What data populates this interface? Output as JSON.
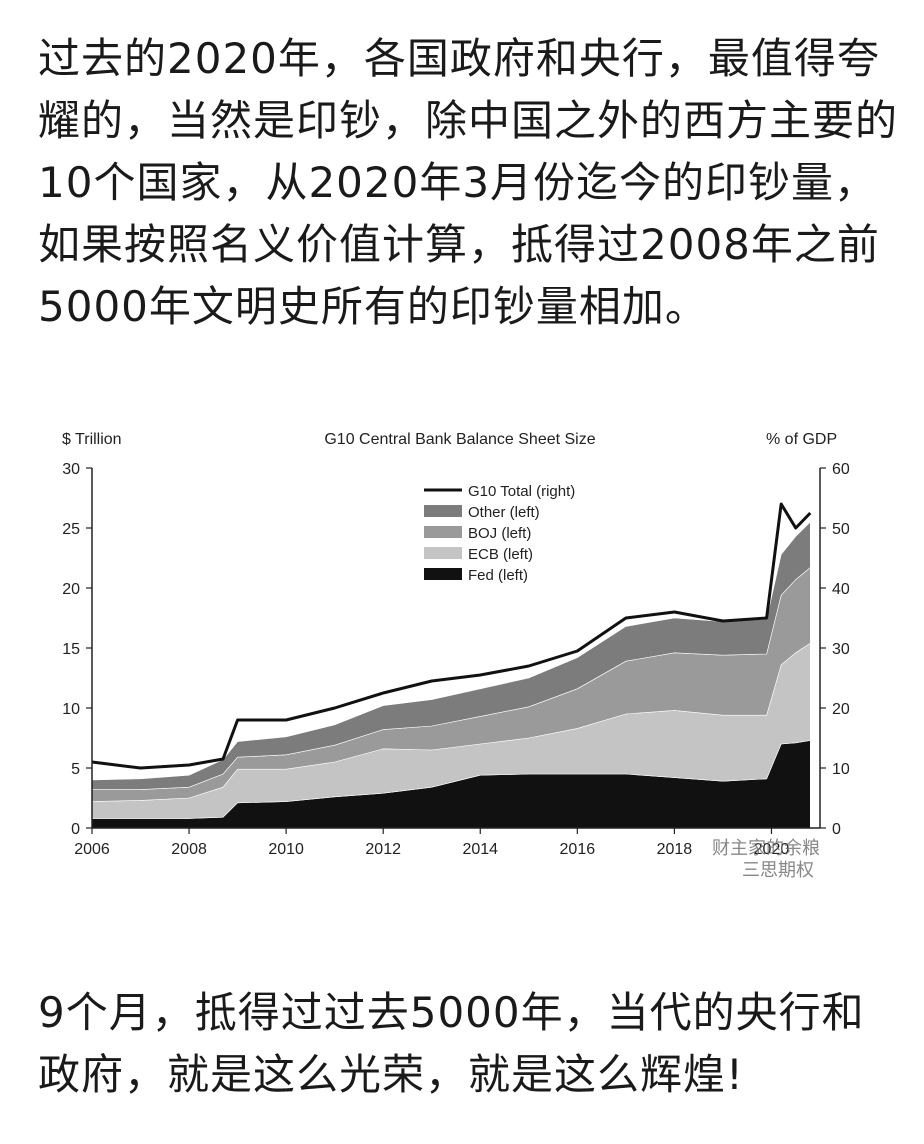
{
  "intro_text": "过去的2020年，各国政府和央行，最值得夸耀的，当然是印钞，除中国之外的西方主要的10个国家，从2020年3月份迄今的印钞量，如果按照名义价值计算，抵得过2008年之前5000年文明史所有的印钞量相加。",
  "outro_text": "9个月，抵得过过去5000年，当代的央行和政府，就是这么光荣，就是这么辉煌!",
  "watermark_line1": "财主家的余粮",
  "watermark_line2": "三思期权",
  "chart_data": {
    "type": "area",
    "title": "G10 Central Bank Balance Sheet Size",
    "ylabel": "$ Trillion",
    "y2label": "% of GDP",
    "xlim": [
      2006,
      2021
    ],
    "ylim": [
      0,
      30
    ],
    "y2lim": [
      0,
      60
    ],
    "x_ticks": [
      2006,
      2008,
      2010,
      2012,
      2014,
      2016,
      2018,
      2020
    ],
    "y_ticks": [
      0,
      5,
      10,
      15,
      20,
      25,
      30
    ],
    "y2_ticks": [
      0,
      10,
      20,
      30,
      40,
      50,
      60
    ],
    "stacked": true,
    "legend_position": "top-center",
    "colors": {
      "fed": "#111111",
      "ecb": "#c4c4c4",
      "boj": "#9a9a9a",
      "other": "#7c7c7c",
      "total": "#111111"
    },
    "x": [
      2006,
      2007,
      2008,
      2008.7,
      2009,
      2010,
      2011,
      2012,
      2013,
      2014,
      2015,
      2016,
      2017,
      2018,
      2019,
      2019.9,
      2020.2,
      2020.5,
      2020.8
    ],
    "series": [
      {
        "name": "Fed (left)",
        "kind": "area",
        "values": [
          0.8,
          0.8,
          0.8,
          0.9,
          2.1,
          2.2,
          2.6,
          2.9,
          3.4,
          4.4,
          4.5,
          4.5,
          4.5,
          4.2,
          3.9,
          4.1,
          7.0,
          7.1,
          7.3
        ]
      },
      {
        "name": "ECB (left)",
        "kind": "area",
        "values": [
          1.4,
          1.5,
          1.7,
          2.5,
          2.8,
          2.7,
          2.9,
          3.7,
          3.1,
          2.6,
          3.0,
          3.8,
          5.0,
          5.6,
          5.5,
          5.3,
          6.6,
          7.5,
          8.1
        ]
      },
      {
        "name": "BOJ (left)",
        "kind": "area",
        "values": [
          1.0,
          0.9,
          0.9,
          1.1,
          1.0,
          1.2,
          1.4,
          1.6,
          2.0,
          2.3,
          2.6,
          3.3,
          4.4,
          4.8,
          5.0,
          5.1,
          5.8,
          6.1,
          6.3
        ]
      },
      {
        "name": "Other (left)",
        "kind": "area",
        "values": [
          0.8,
          0.9,
          1.0,
          1.2,
          1.3,
          1.5,
          1.7,
          2.0,
          2.2,
          2.3,
          2.4,
          2.6,
          2.9,
          2.9,
          2.8,
          2.9,
          3.4,
          3.6,
          3.8
        ]
      },
      {
        "name": "G10 Total (right)",
        "kind": "line",
        "axis": "right",
        "values": [
          11,
          10,
          10.5,
          11.5,
          18,
          18,
          20,
          22.5,
          24.5,
          25.5,
          27,
          29.5,
          35,
          36,
          34.5,
          35,
          54,
          50,
          52.5
        ]
      }
    ]
  }
}
